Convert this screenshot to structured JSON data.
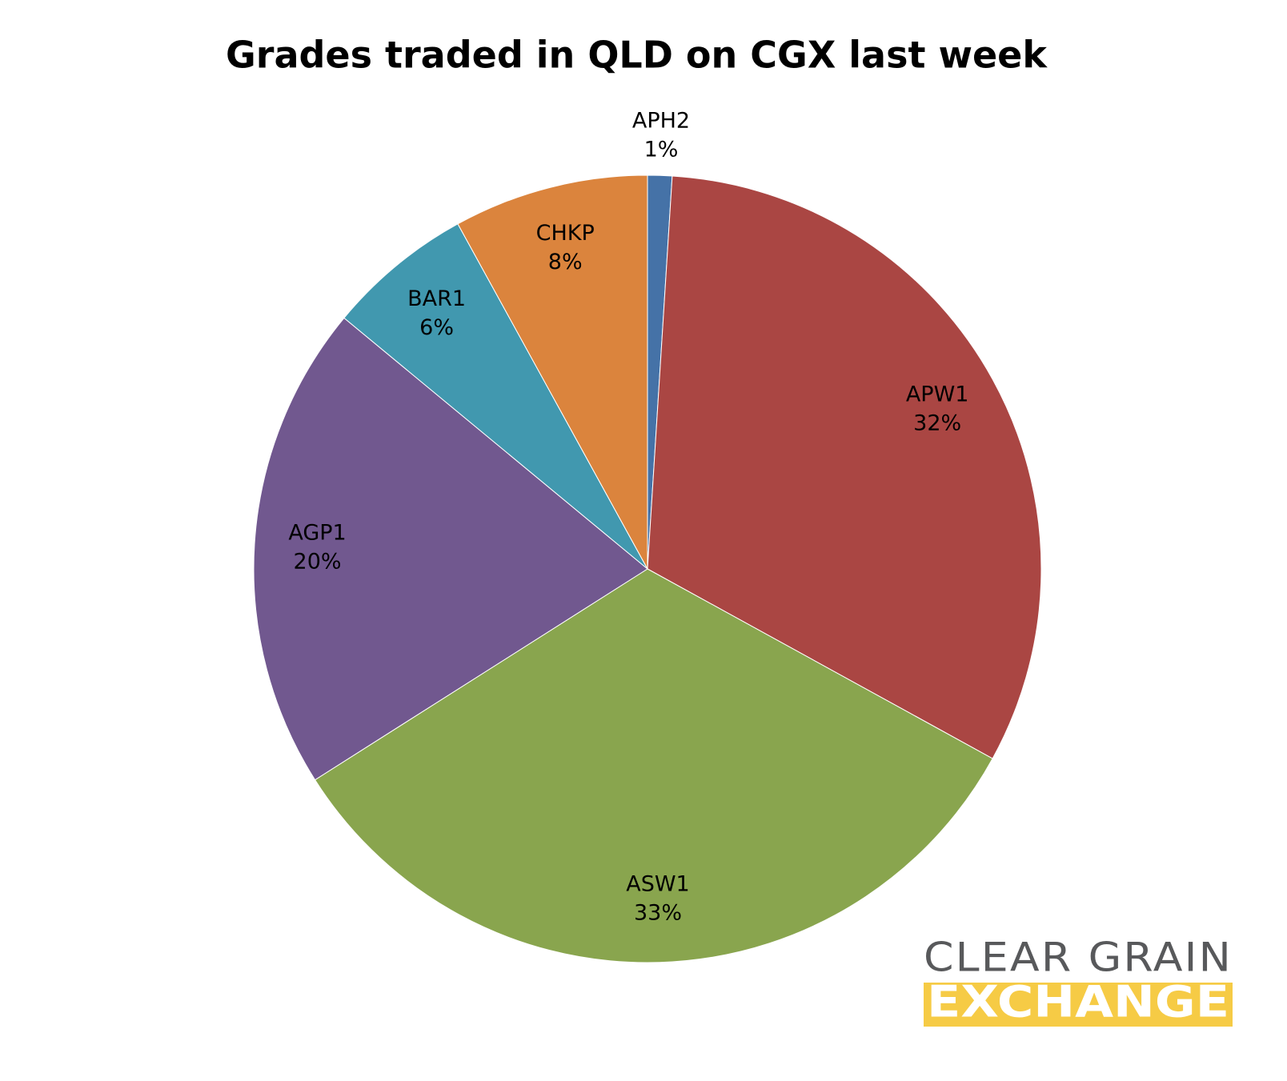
{
  "chart_data": {
    "type": "pie",
    "title": "Grades traded in QLD on CGX last week",
    "categories": [
      "APH2",
      "APW1",
      "ASW1",
      "AGP1",
      "BAR1",
      "CHKP"
    ],
    "values": [
      1,
      32,
      33,
      20,
      6,
      8
    ],
    "value_labels": [
      "1%",
      "32%",
      "33%",
      "20%",
      "6%",
      "8%"
    ],
    "colors": [
      "#4572a7",
      "#aa4643",
      "#89a54e",
      "#71588f",
      "#4198af",
      "#db843d"
    ]
  },
  "logo": {
    "line1": "CLEAR GRAIN",
    "line2": "EXCHANGE"
  }
}
